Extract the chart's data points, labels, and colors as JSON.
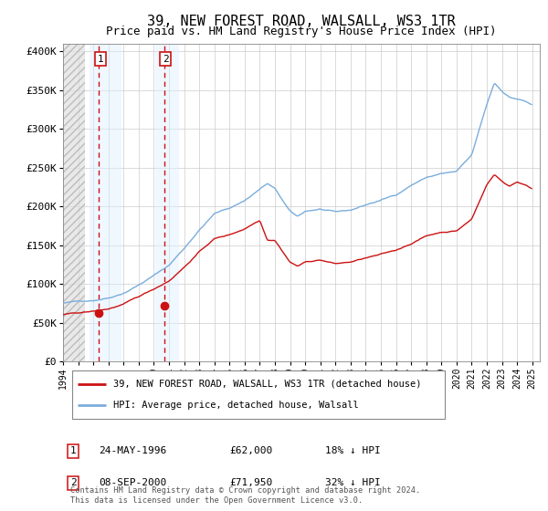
{
  "title": "39, NEW FOREST ROAD, WALSALL, WS3 1TR",
  "subtitle": "Price paid vs. HM Land Registry's House Price Index (HPI)",
  "title_fontsize": 11,
  "subtitle_fontsize": 9,
  "ylabel_ticks": [
    "£0",
    "£50K",
    "£100K",
    "£150K",
    "£200K",
    "£250K",
    "£300K",
    "£350K",
    "£400K"
  ],
  "ytick_values": [
    0,
    50000,
    100000,
    150000,
    200000,
    250000,
    300000,
    350000,
    400000
  ],
  "ylim": [
    0,
    410000
  ],
  "xlim_start": 1994.0,
  "xlim_end": 2025.5,
  "hatch_end_year": 1995.42,
  "sale1_year": 1996.38,
  "sale1_price": 62000,
  "sale2_year": 2000.67,
  "sale2_price": 71950,
  "hpi_color": "#7aaddc",
  "price_color": "#cc1111",
  "background_color": "#ffffff",
  "plot_bg_color": "#ffffff",
  "grid_color": "#cccccc",
  "legend_line1": "39, NEW FOREST ROAD, WALSALL, WS3 1TR (detached house)",
  "legend_line2": "HPI: Average price, detached house, Walsall",
  "table_rows": [
    {
      "num": "1",
      "date": "24-MAY-1996",
      "price": "£62,000",
      "pct": "18% ↓ HPI"
    },
    {
      "num": "2",
      "date": "08-SEP-2000",
      "price": "£71,950",
      "pct": "32% ↓ HPI"
    }
  ],
  "footer": "Contains HM Land Registry data © Crown copyright and database right 2024.\nThis data is licensed under the Open Government Licence v3.0.",
  "xtick_years": [
    1994,
    1995,
    1996,
    1997,
    1998,
    1999,
    2000,
    2001,
    2002,
    2003,
    2004,
    2005,
    2006,
    2007,
    2008,
    2009,
    2010,
    2011,
    2012,
    2013,
    2014,
    2015,
    2016,
    2017,
    2018,
    2019,
    2020,
    2021,
    2022,
    2023,
    2024,
    2025
  ]
}
